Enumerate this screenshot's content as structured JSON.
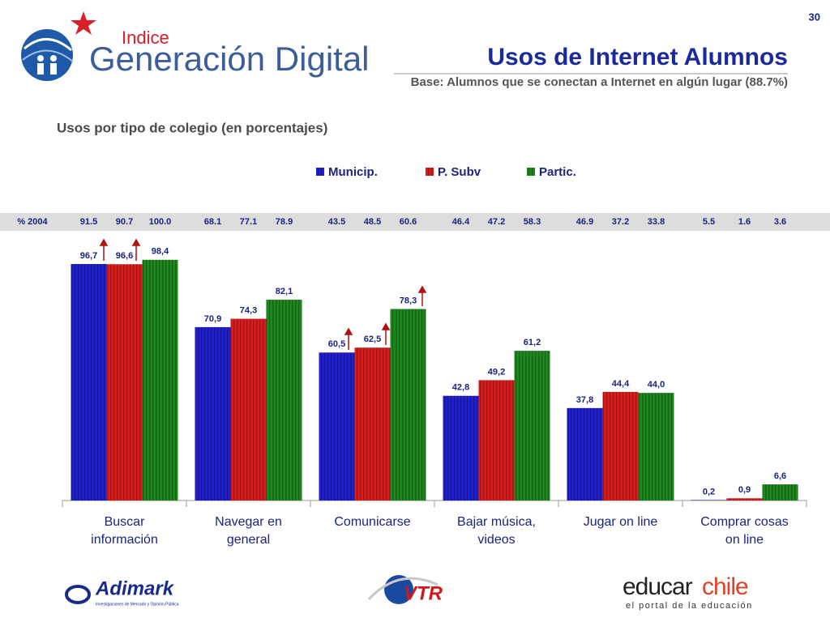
{
  "page_number": "30",
  "logos": {
    "brand_top": "Indice",
    "brand": "Generación Digital",
    "adimark": "Adimark",
    "adimark_tagline": "Investigaciones de Mercado y Opinión Pública",
    "vtr": "VTR",
    "educar": "educar",
    "chile": "chile",
    "educar_tagline": "el portal de la educación"
  },
  "chart_data": {
    "type": "bar",
    "title": "Usos de Internet Alumnos",
    "subtitle": "Base: Alumnos que se conectan a Internet en algún lugar (88.7%)",
    "chart_title": "Usos por tipo de colegio (en porcentajes)",
    "categories": [
      "Buscar información",
      "Navegar en general",
      "Comunicarse",
      "Bajar música, videos",
      "Jugar on line",
      "Comprar cosas on line"
    ],
    "ylim": [
      0,
      100
    ],
    "series": [
      {
        "name": "Municip.",
        "color": "#1f1fd6",
        "values": [
          96.7,
          70.9,
          60.5,
          42.8,
          37.8,
          0.2
        ],
        "value_labels": [
          "96,7",
          "70,9",
          "60,5",
          "42,8",
          "37,8",
          "0,2"
        ]
      },
      {
        "name": "P. Subv",
        "color": "#e01a1a",
        "values": [
          96.6,
          74.3,
          62.5,
          49.2,
          44.4,
          0.9
        ],
        "value_labels": [
          "96,6",
          "74,3",
          "62,5",
          "49,2",
          "44,4",
          "0,9"
        ]
      },
      {
        "name": "Partic.",
        "color": "#1a8a1a",
        "values": [
          98.4,
          82.1,
          78.3,
          61.2,
          44.0,
          6.6
        ],
        "value_labels": [
          "98,4",
          "82,1",
          "78,3",
          "61,2",
          "44,0",
          "6,6"
        ]
      }
    ],
    "row_2004": {
      "label": "% 2004",
      "values": [
        [
          "91.5",
          "90.7",
          "100.0"
        ],
        [
          "68.1",
          "77.1",
          "78.9"
        ],
        [
          "43.5",
          "48.5",
          "60.6"
        ],
        [
          "46.4",
          "47.2",
          "58.3"
        ],
        [
          "46.9",
          "37.2",
          "33.8"
        ],
        [
          "5.5",
          "1.6",
          "3.6"
        ]
      ]
    }
  }
}
